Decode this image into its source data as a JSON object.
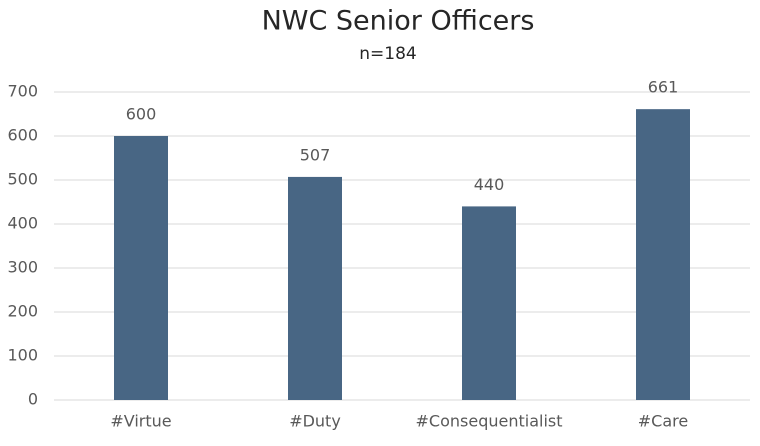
{
  "chart_data": {
    "type": "bar",
    "title": "NWC Senior Officers",
    "subtitle": "n=184",
    "categories": [
      "#Virtue",
      "#Duty",
      "#Consequentialist",
      "#Care"
    ],
    "values": [
      600,
      507,
      440,
      661
    ],
    "color": "#486684",
    "ylim": [
      0,
      700
    ],
    "yticks": [
      0,
      100,
      200,
      300,
      400,
      500,
      600,
      700
    ],
    "grid": true
  }
}
